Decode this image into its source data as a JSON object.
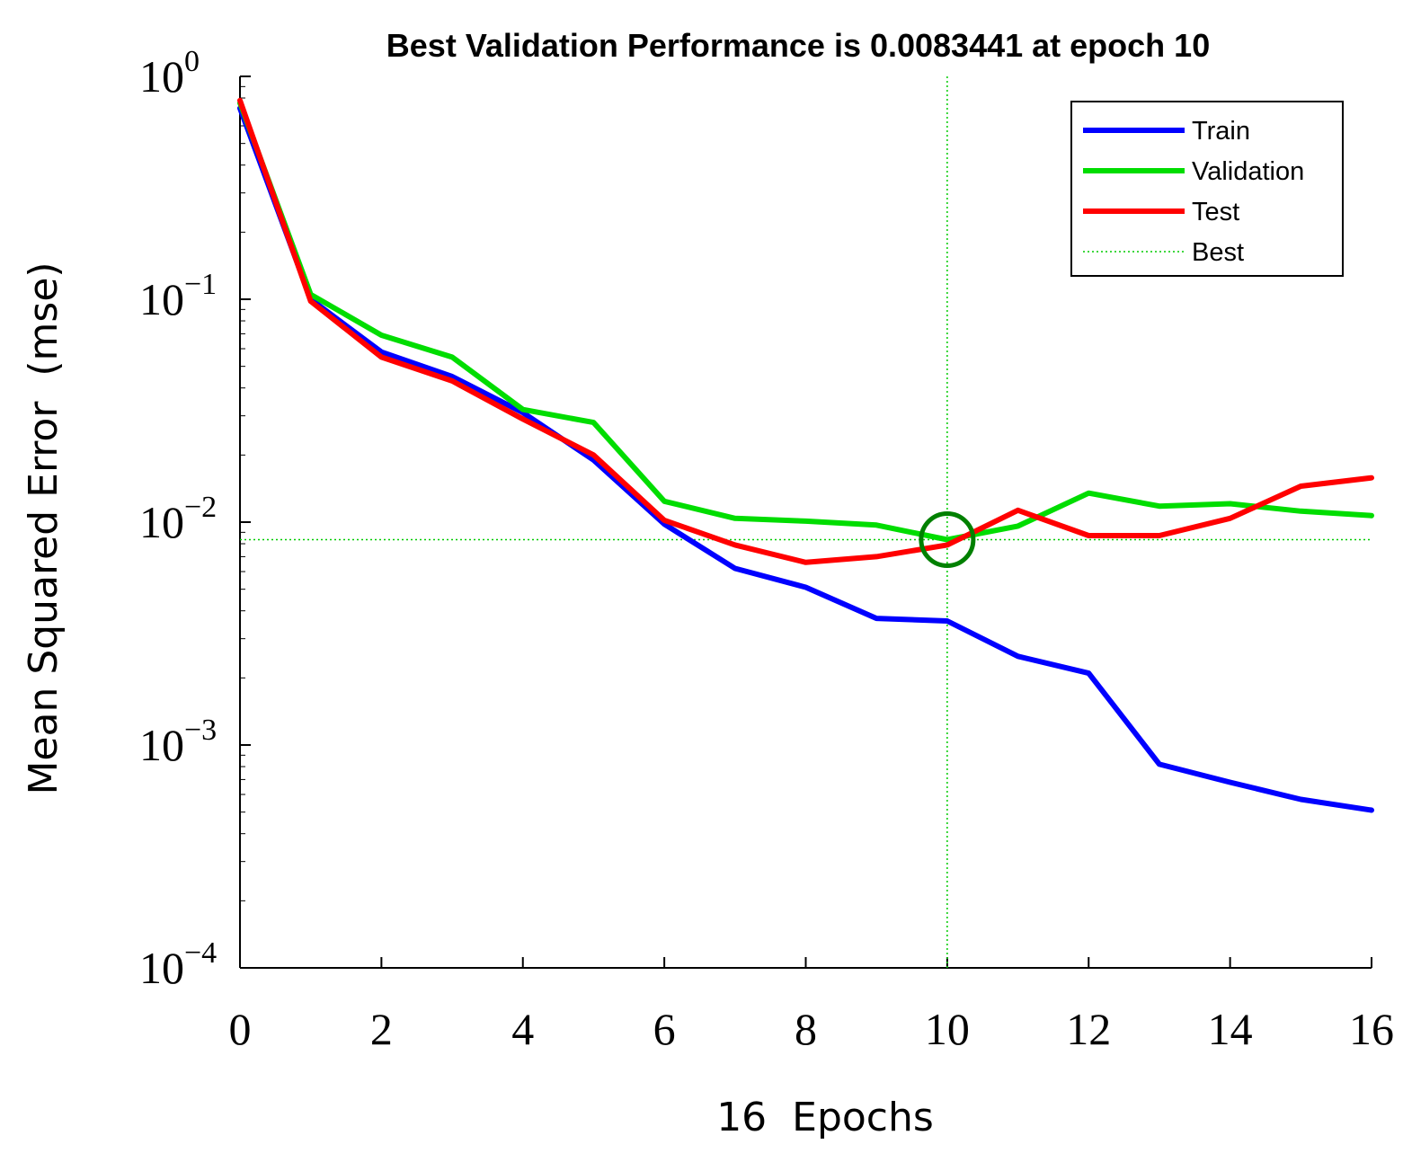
{
  "chart_data": {
    "type": "line",
    "title": "Best Validation Performance is 0.0083441 at epoch 10",
    "xlabel": "16  Epochs",
    "ylabel": "Mean Squared Error  (mse)",
    "yscale": "log",
    "xlim": [
      0,
      16
    ],
    "ylim": [
      0.0001,
      1
    ],
    "xticks": [
      0,
      2,
      4,
      6,
      8,
      10,
      12,
      14,
      16
    ],
    "yticks": [
      {
        "value": 1,
        "base": "10",
        "exp": "0"
      },
      {
        "value": 0.1,
        "base": "10",
        "exp": "−1"
      },
      {
        "value": 0.01,
        "base": "10",
        "exp": "−2"
      },
      {
        "value": 0.001,
        "base": "10",
        "exp": "−3"
      },
      {
        "value": 0.0001,
        "base": "10",
        "exp": "−4"
      }
    ],
    "x": [
      0,
      1,
      2,
      3,
      4,
      5,
      6,
      7,
      8,
      9,
      10,
      11,
      12,
      13,
      14,
      15,
      16
    ],
    "series": [
      {
        "name": "Train",
        "color": "#0000ff",
        "values": [
          0.72,
          0.1,
          0.058,
          0.045,
          0.031,
          0.019,
          0.0098,
          0.0062,
          0.0051,
          0.0037,
          0.0036,
          0.0025,
          0.0021,
          0.00082,
          0.00068,
          0.00057,
          0.00051
        ]
      },
      {
        "name": "Validation",
        "color": "#00dd00",
        "values": [
          0.76,
          0.105,
          0.069,
          0.055,
          0.032,
          0.028,
          0.0124,
          0.0104,
          0.0101,
          0.0097,
          0.0083441,
          0.0096,
          0.0135,
          0.0118,
          0.0121,
          0.0112,
          0.0107
        ]
      },
      {
        "name": "Test",
        "color": "#ff0000",
        "values": [
          0.78,
          0.098,
          0.055,
          0.043,
          0.029,
          0.02,
          0.0102,
          0.0079,
          0.0066,
          0.007,
          0.0079,
          0.0113,
          0.0087,
          0.0087,
          0.0104,
          0.0145,
          0.0158
        ]
      }
    ],
    "best": {
      "label": "Best",
      "epoch": 10,
      "value": 0.0083441,
      "color": "#00cc00",
      "marker_color": "#008000"
    },
    "grid": false,
    "legend_position": "top-right"
  }
}
